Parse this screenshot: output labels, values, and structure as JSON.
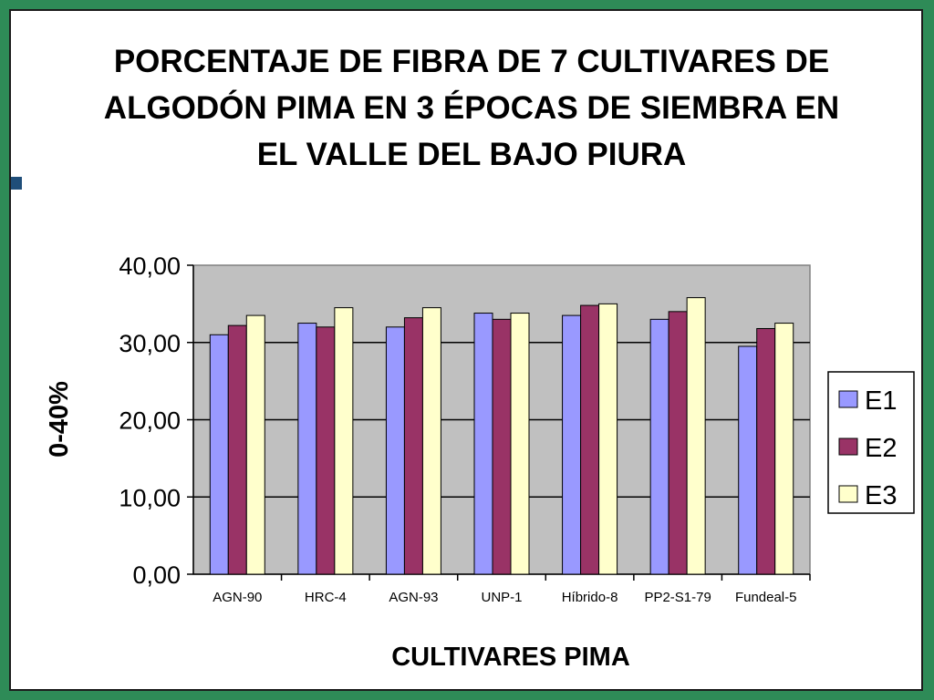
{
  "chart_data": {
    "type": "bar",
    "title": "PORCENTAJE DE FIBRA DE 7 CULTIVARES DE ALGODÓN PIMA EN 3 ÉPOCAS DE SIEMBRA EN EL VALLE DEL BAJO PIURA",
    "xlabel": "CULTIVARES  PIMA",
    "ylabel": "0-40%",
    "ylim": [
      0,
      40
    ],
    "yticks": [
      "0,00",
      "10,00",
      "20,00",
      "30,00",
      "40,00"
    ],
    "categories": [
      "AGN-90",
      "HRC-4",
      "AGN-93",
      "UNP-1",
      "Híbrido-8",
      "PP2-S1-79",
      "Fundeal-5"
    ],
    "series": [
      {
        "name": "E1",
        "color": "#9999ff",
        "values": [
          31.0,
          32.5,
          32.0,
          33.8,
          33.5,
          33.0,
          29.5
        ]
      },
      {
        "name": "E2",
        "color": "#993366",
        "values": [
          32.2,
          32.0,
          33.2,
          33.0,
          34.8,
          34.0,
          31.8
        ]
      },
      {
        "name": "E3",
        "color": "#ffffcc",
        "values": [
          33.5,
          34.5,
          34.5,
          33.8,
          35.0,
          35.8,
          32.5
        ]
      }
    ],
    "grid": true,
    "legend": "right"
  }
}
